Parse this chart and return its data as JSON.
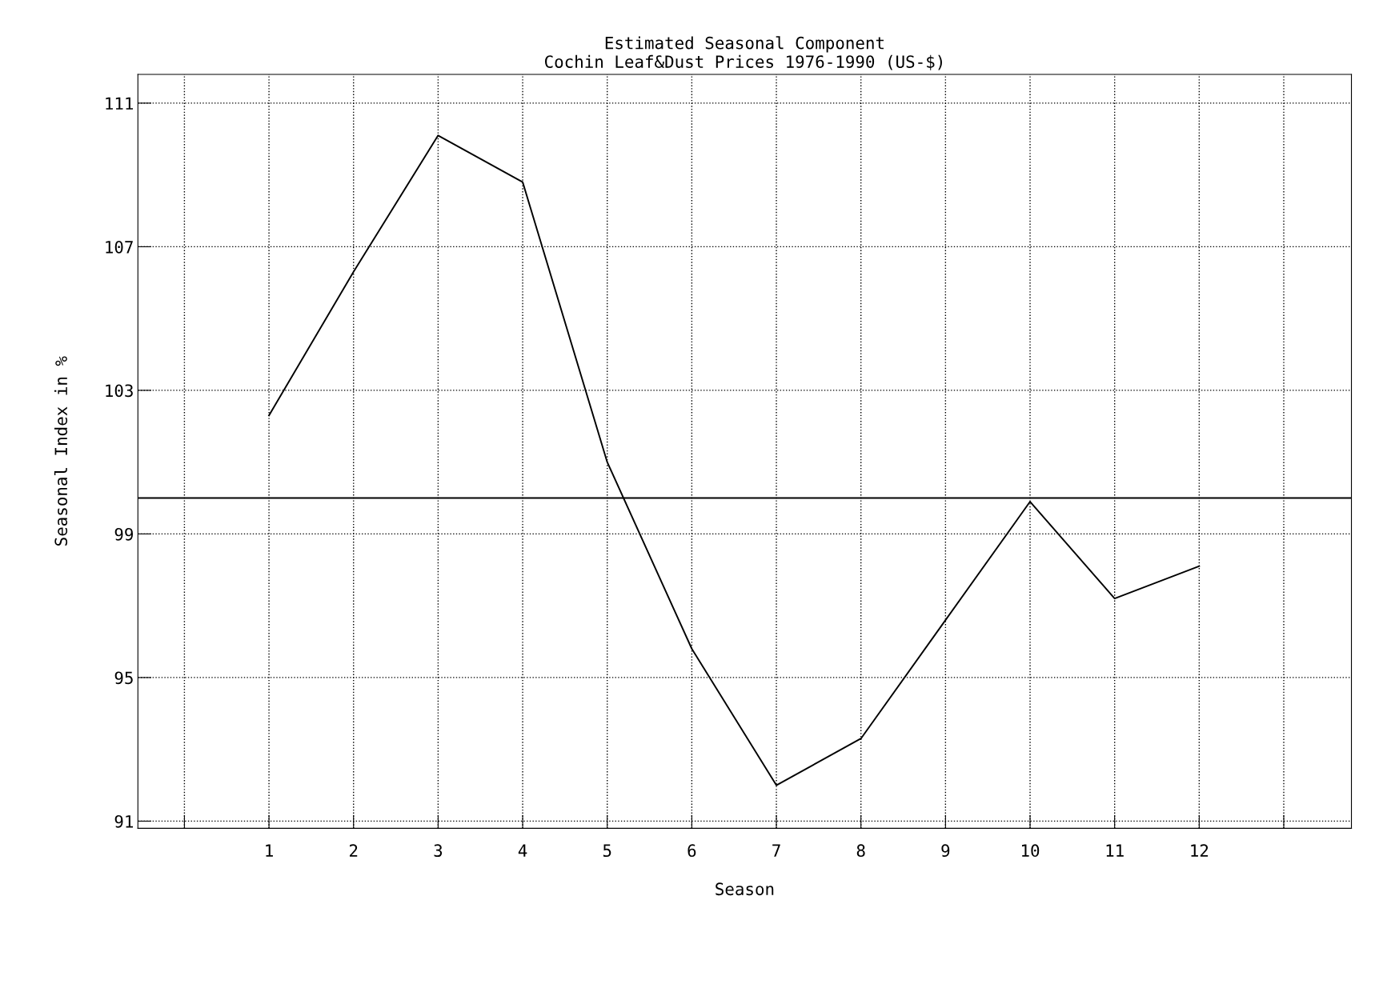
{
  "chart_data": {
    "type": "line",
    "title": "Estimated Seasonal Component\nCochin Leaf&Dust Prices 1976-1990 (US-$)",
    "xlabel": "Season",
    "ylabel": "Seasonal Index in %",
    "x": [
      1,
      2,
      3,
      4,
      5,
      6,
      7,
      8,
      9,
      10,
      11,
      12
    ],
    "series": [
      {
        "color": "#000000",
        "values": [
          102.3,
          106.3,
          110.1,
          108.8,
          101.0,
          95.8,
          92.0,
          93.3,
          96.6,
          99.9,
          97.2,
          98.1
        ]
      }
    ],
    "xlim": [
      -0.55,
      13.8
    ],
    "ylim": [
      90.8,
      111.8
    ],
    "xticks": [
      {
        "value": 0,
        "label": null
      },
      1,
      2,
      3,
      4,
      5,
      6,
      7,
      8,
      9,
      10,
      11,
      12,
      {
        "value": 13,
        "label": null
      }
    ],
    "yticks": [
      91,
      95,
      99,
      103,
      107,
      111
    ],
    "ref_lines": [
      {
        "axis": "y",
        "value": 100,
        "label": null,
        "color": "#000000",
        "line_style": "solid"
      }
    ],
    "grid": true,
    "marker": "none",
    "line_style": "solid",
    "legend": false
  }
}
